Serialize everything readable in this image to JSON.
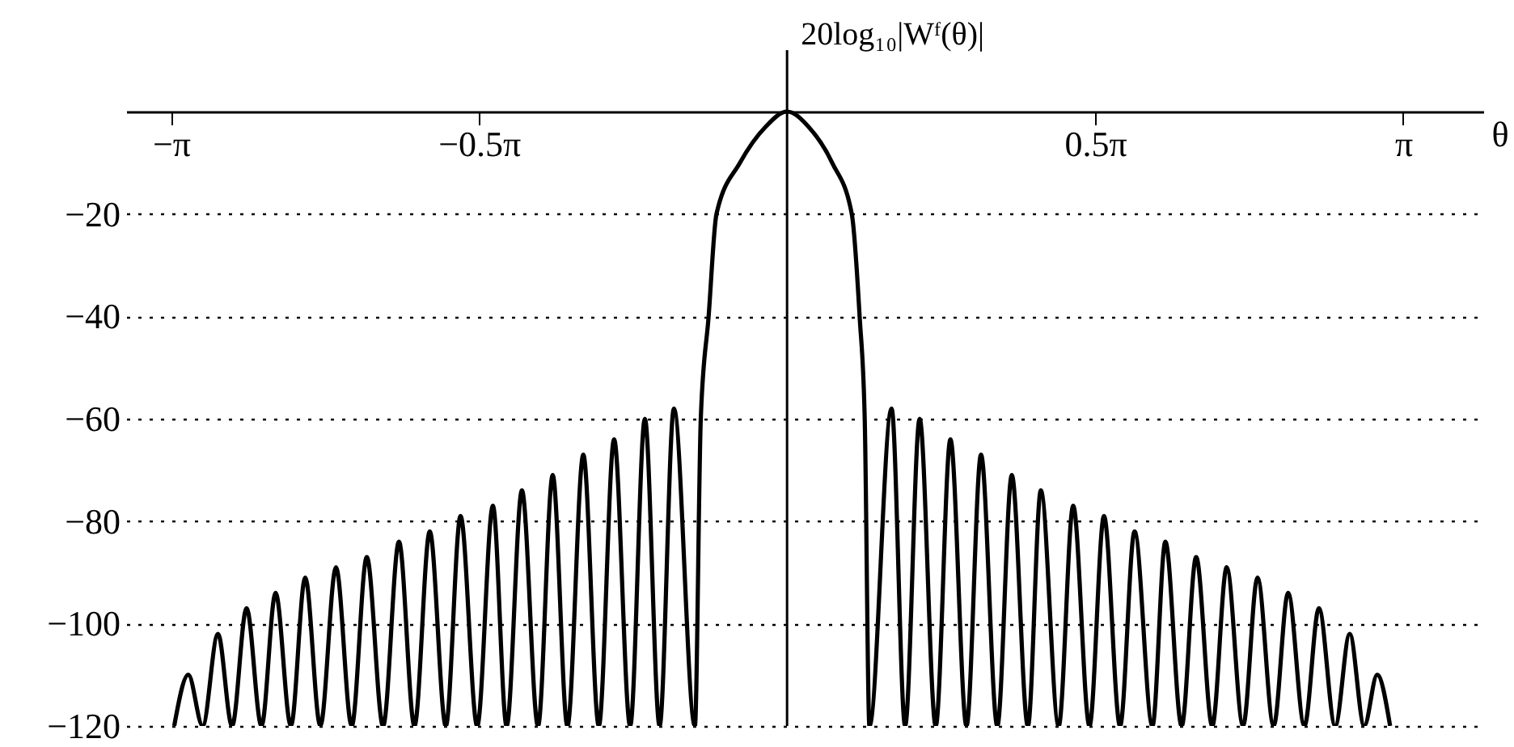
{
  "chart_data": {
    "type": "line",
    "xlabel": "θ",
    "ylabel": "20log₁₀|Wᶠ(θ)|",
    "xlim": [
      -3.37,
      3.55
    ],
    "ylim": [
      -120,
      12
    ],
    "xticks": [
      {
        "value": -3.1416,
        "label": "−π"
      },
      {
        "value": -1.5708,
        "label": "−0.5π"
      },
      {
        "value": 1.5708,
        "label": "0.5π"
      },
      {
        "value": 3.1416,
        "label": "π"
      }
    ],
    "yticks": [
      -20,
      -40,
      -60,
      -80,
      -100,
      -120
    ],
    "grid": "y",
    "marker": "none",
    "line_style": "solid",
    "ref_lines": [
      {
        "axis": "x",
        "value": 0,
        "color": "#000000"
      }
    ],
    "series": [
      {
        "color": "#000000",
        "x": [
          -3.125,
          -3.053,
          -2.98,
          -2.902,
          -2.83,
          -2.756,
          -2.68,
          -2.608,
          -2.53,
          -2.457,
          -2.38,
          -2.3,
          -2.22,
          -2.143,
          -2.06,
          -1.979,
          -1.9,
          -1.822,
          -1.74,
          -1.665,
          -1.58,
          -1.5,
          -1.43,
          -1.352,
          -1.27,
          -1.195,
          -1.12,
          -1.039,
          -0.96,
          -0.882,
          -0.8,
          -0.725,
          -0.65,
          -0.577,
          -0.47,
          -0.44,
          -0.4,
          -0.36,
          -0.24,
          -0.11,
          0,
          0.11,
          0.23,
          0.33,
          0.37,
          0.396,
          0.42,
          0.533,
          0.602,
          0.676,
          0.758,
          0.833,
          0.915,
          0.989,
          1.072,
          1.146,
          1.228,
          1.294,
          1.385,
          1.459,
          1.542,
          1.616,
          1.698,
          1.772,
          1.863,
          1.929,
          2.012,
          2.086,
          2.168,
          2.242,
          2.325,
          2.399,
          2.481,
          2.555,
          2.638,
          2.712,
          2.795,
          2.869,
          2.943,
          3.009,
          3.075
        ],
        "values": [
          -120,
          -110,
          -120,
          -102,
          -120,
          -97,
          -120,
          -94,
          -120,
          -91,
          -120,
          -89,
          -120,
          -87,
          -120,
          -84,
          -120,
          -82,
          -120,
          -79,
          -120,
          -77,
          -120,
          -74,
          -120,
          -71,
          -120,
          -67,
          -120,
          -64,
          -120,
          -60,
          -120,
          -58,
          -120,
          -60,
          -40,
          -20,
          -10,
          -3,
          0,
          -3,
          -10,
          -20,
          -40,
          -60,
          -120,
          -58,
          -120,
          -60,
          -120,
          -64,
          -120,
          -67,
          -120,
          -71,
          -120,
          -74,
          -120,
          -77,
          -120,
          -79,
          -120,
          -82,
          -120,
          -84,
          -120,
          -87,
          -120,
          -89,
          -120,
          -91,
          -120,
          -94,
          -120,
          -97,
          -120,
          -102,
          -120,
          -110,
          -120
        ]
      }
    ]
  }
}
